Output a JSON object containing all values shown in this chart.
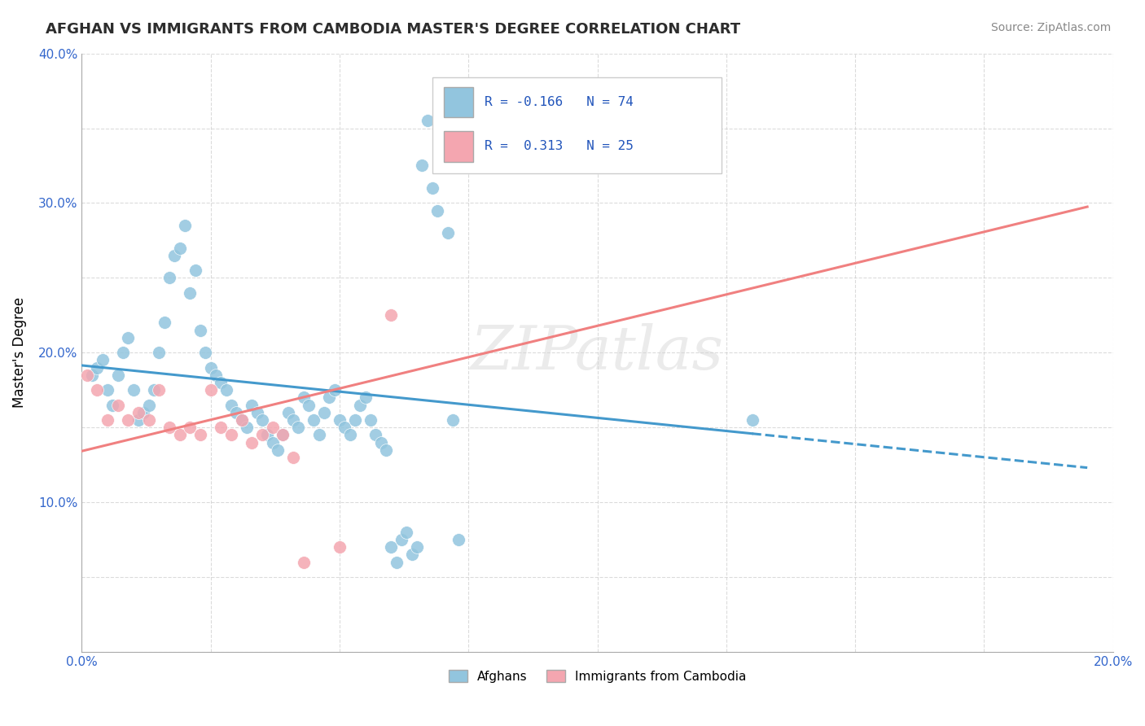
{
  "title": "AFGHAN VS IMMIGRANTS FROM CAMBODIA MASTER'S DEGREE CORRELATION CHART",
  "source": "Source: ZipAtlas.com",
  "ylabel_label": "Master's Degree",
  "xlim": [
    0.0,
    0.2
  ],
  "ylim": [
    0.0,
    0.4
  ],
  "afghan_color": "#92c5de",
  "cambodia_color": "#f4a6b0",
  "trendline_afghan_color": "#4499cc",
  "trendline_cambodia_color": "#f08080",
  "legend_afghan_label": "Afghans",
  "legend_cambodia_label": "Immigrants from Cambodia",
  "watermark": "ZIPatlas",
  "afghan_x": [
    0.002,
    0.003,
    0.004,
    0.005,
    0.006,
    0.007,
    0.008,
    0.009,
    0.01,
    0.011,
    0.012,
    0.013,
    0.014,
    0.015,
    0.016,
    0.017,
    0.018,
    0.019,
    0.02,
    0.021,
    0.022,
    0.023,
    0.024,
    0.025,
    0.026,
    0.027,
    0.028,
    0.029,
    0.03,
    0.031,
    0.032,
    0.033,
    0.034,
    0.035,
    0.036,
    0.037,
    0.038,
    0.039,
    0.04,
    0.041,
    0.042,
    0.043,
    0.044,
    0.045,
    0.046,
    0.047,
    0.048,
    0.049,
    0.05,
    0.051,
    0.052,
    0.053,
    0.054,
    0.055,
    0.056,
    0.057,
    0.058,
    0.059,
    0.06,
    0.061,
    0.062,
    0.063,
    0.064,
    0.065,
    0.066,
    0.067,
    0.068,
    0.069,
    0.07,
    0.071,
    0.072,
    0.073,
    0.13
  ],
  "afghan_y": [
    0.185,
    0.19,
    0.195,
    0.175,
    0.165,
    0.185,
    0.2,
    0.21,
    0.175,
    0.155,
    0.16,
    0.165,
    0.175,
    0.2,
    0.22,
    0.25,
    0.265,
    0.27,
    0.285,
    0.24,
    0.255,
    0.215,
    0.2,
    0.19,
    0.185,
    0.18,
    0.175,
    0.165,
    0.16,
    0.155,
    0.15,
    0.165,
    0.16,
    0.155,
    0.145,
    0.14,
    0.135,
    0.145,
    0.16,
    0.155,
    0.15,
    0.17,
    0.165,
    0.155,
    0.145,
    0.16,
    0.17,
    0.175,
    0.155,
    0.15,
    0.145,
    0.155,
    0.165,
    0.17,
    0.155,
    0.145,
    0.14,
    0.135,
    0.07,
    0.06,
    0.075,
    0.08,
    0.065,
    0.07,
    0.325,
    0.355,
    0.31,
    0.295,
    0.355,
    0.28,
    0.155,
    0.075,
    0.155
  ],
  "cambodia_x": [
    0.001,
    0.003,
    0.005,
    0.007,
    0.009,
    0.011,
    0.013,
    0.015,
    0.017,
    0.019,
    0.021,
    0.023,
    0.025,
    0.027,
    0.029,
    0.031,
    0.033,
    0.035,
    0.037,
    0.039,
    0.041,
    0.043,
    0.05,
    0.06,
    0.1
  ],
  "cambodia_y": [
    0.185,
    0.175,
    0.155,
    0.165,
    0.155,
    0.16,
    0.155,
    0.175,
    0.15,
    0.145,
    0.15,
    0.145,
    0.175,
    0.15,
    0.145,
    0.155,
    0.14,
    0.145,
    0.15,
    0.145,
    0.13,
    0.06,
    0.07,
    0.225,
    0.33
  ]
}
